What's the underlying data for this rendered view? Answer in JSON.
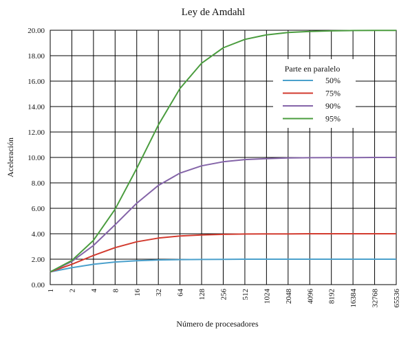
{
  "chart_data": {
    "type": "line",
    "title": "Ley de Amdahl",
    "xlabel": "Número de procesadores",
    "ylabel": "Aceleración",
    "x": [
      "1",
      "2",
      "4",
      "8",
      "16",
      "32",
      "64",
      "128",
      "256",
      "512",
      "1024",
      "2048",
      "4096",
      "8192",
      "16384",
      "32768",
      "65536"
    ],
    "y_ticks": [
      "0.00",
      "2.00",
      "4.00",
      "6.00",
      "8.00",
      "10.00",
      "12.00",
      "14.00",
      "16.00",
      "18.00",
      "20.00"
    ],
    "ylim": [
      0,
      20
    ],
    "x_scale": "log2",
    "grid": true,
    "legend": {
      "title": "Parte en paralelo",
      "placement": "right"
    },
    "series": [
      {
        "name": "50%",
        "color": "#4aa0cc",
        "values": [
          1.0,
          1.33,
          1.6,
          1.78,
          1.88,
          1.94,
          1.97,
          1.98,
          1.99,
          2.0,
          2.0,
          2.0,
          2.0,
          2.0,
          2.0,
          2.0,
          2.0
        ]
      },
      {
        "name": "75%",
        "color": "#d23a2e",
        "values": [
          1.0,
          1.6,
          2.29,
          2.91,
          3.37,
          3.66,
          3.82,
          3.91,
          3.95,
          3.98,
          3.99,
          3.99,
          4.0,
          4.0,
          4.0,
          4.0,
          4.0
        ]
      },
      {
        "name": "90%",
        "color": "#8464a8",
        "values": [
          1.0,
          1.82,
          3.08,
          4.71,
          6.4,
          7.8,
          8.77,
          9.34,
          9.66,
          9.83,
          9.91,
          9.96,
          9.98,
          9.99,
          9.99,
          10.0,
          10.0
        ]
      },
      {
        "name": "95%",
        "color": "#4a9c3e",
        "values": [
          1.0,
          1.9,
          3.48,
          5.93,
          9.14,
          12.55,
          15.42,
          17.41,
          18.62,
          19.28,
          19.64,
          19.82,
          19.91,
          19.95,
          19.98,
          19.99,
          19.99
        ]
      }
    ]
  }
}
